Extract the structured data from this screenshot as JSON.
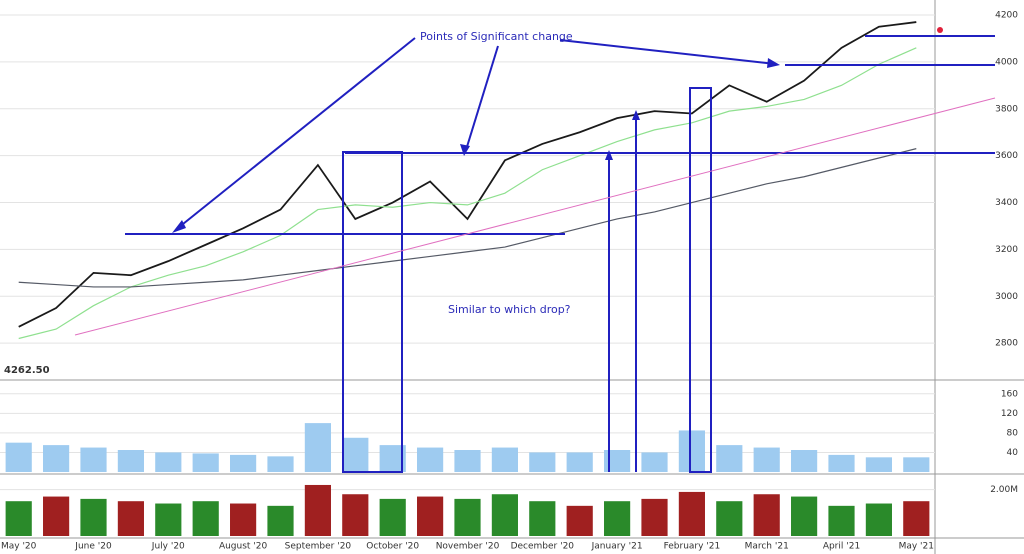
{
  "chart_data": [
    {
      "type": "line",
      "categories": [
        "May '20",
        null,
        "June '20",
        null,
        "July '20",
        null,
        "August '20",
        null,
        "September '20",
        null,
        "October '20",
        null,
        "November '20",
        null,
        "December '20",
        null,
        "January '21",
        null,
        "February '21",
        null,
        "March '21",
        null,
        "April '21",
        null,
        "May '21"
      ],
      "series": [
        {
          "color": "#1a1a1a",
          "values": [
            2870,
            2950,
            3100,
            3090,
            3150,
            3220,
            3290,
            3370,
            3560,
            3330,
            3400,
            3490,
            3330,
            3580,
            3650,
            3700,
            3760,
            3790,
            3780,
            3900,
            3830,
            3920,
            4060,
            4150,
            4170
          ]
        },
        {
          "color": "#8fe08f",
          "values": [
            2820,
            2860,
            2960,
            3040,
            3090,
            3130,
            3190,
            3260,
            3370,
            3390,
            3380,
            3400,
            3390,
            3440,
            3540,
            3600,
            3660,
            3710,
            3740,
            3790,
            3810,
            3840,
            3900,
            3990,
            4060
          ]
        },
        {
          "color": "#555a66",
          "values": [
            3060,
            3050,
            3040,
            3040,
            3050,
            3060,
            3070,
            3090,
            3110,
            3130,
            3150,
            3170,
            3190,
            3210,
            3250,
            3290,
            3330,
            3360,
            3400,
            3440,
            3480,
            3510,
            3550,
            3590,
            3630
          ]
        }
      ],
      "ylim": [
        2660,
        4230
      ],
      "yticks": [
        2800,
        3000,
        3200,
        3400,
        3600,
        3800,
        4000,
        4200
      ],
      "grid": true,
      "last_price": "4262.50",
      "annotations": [
        "Points of Significant change",
        "Similar to which drop?"
      ]
    },
    {
      "type": "bar",
      "values": [
        60,
        55,
        50,
        45,
        40,
        38,
        35,
        32,
        100,
        70,
        55,
        50,
        45,
        50,
        40,
        40,
        45,
        40,
        85,
        55,
        50,
        45,
        35,
        30,
        30
      ],
      "color": "#9ecbf0",
      "ylim": [
        0,
        180
      ],
      "yticks": [
        40,
        80,
        120,
        160
      ]
    },
    {
      "type": "bar",
      "values": [
        1500000,
        1700000,
        1600000,
        1500000,
        1400000,
        1500000,
        1400000,
        1300000,
        2200000,
        1800000,
        1600000,
        1700000,
        1600000,
        1800000,
        1500000,
        1300000,
        1500000,
        1600000,
        1900000,
        1500000,
        1800000,
        1700000,
        1300000,
        1400000,
        1500000
      ],
      "colors": [
        "#2a8a2a",
        "#a02020",
        "#2a8a2a",
        "#a02020",
        "#2a8a2a",
        "#2a8a2a",
        "#a02020",
        "#2a8a2a",
        "#a02020",
        "#a02020",
        "#2a8a2a",
        "#a02020",
        "#2a8a2a",
        "#2a8a2a",
        "#2a8a2a",
        "#a02020",
        "#2a8a2a",
        "#a02020",
        "#a02020",
        "#2a8a2a",
        "#a02020",
        "#2a8a2a",
        "#2a8a2a",
        "#2a8a2a",
        "#a02020"
      ],
      "ylim": [
        0,
        2500000
      ],
      "yticks": [
        {
          "value": 2000000,
          "label": "2.00M"
        }
      ]
    }
  ]
}
